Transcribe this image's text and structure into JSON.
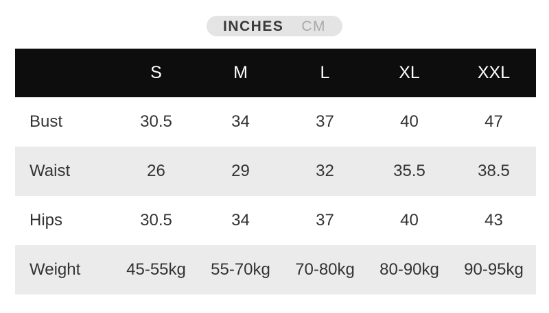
{
  "unit_toggle": {
    "inches_label": "INCHES",
    "cm_label": "CM",
    "selected": "INCHES"
  },
  "size_chart": {
    "columns": [
      "S",
      "M",
      "L",
      "XL",
      "XXL"
    ],
    "rows": [
      {
        "label": "Bust",
        "values": [
          "30.5",
          "34",
          "37",
          "40",
          "47"
        ]
      },
      {
        "label": "Waist",
        "values": [
          "26",
          "29",
          "32",
          "35.5",
          "38.5"
        ]
      },
      {
        "label": "Hips",
        "values": [
          "30.5",
          "34",
          "37",
          "40",
          "43"
        ]
      },
      {
        "label": "Weight",
        "values": [
          "45-55kg",
          "55-70kg",
          "70-80kg",
          "80-90kg",
          "90-95kg"
        ]
      }
    ]
  },
  "colors": {
    "header_bg": "#0d0d0d",
    "header_text": "#ffffff",
    "row_shaded_bg": "#ebebeb",
    "cell_text": "#333333",
    "toggle_bg": "#e4e4e4",
    "toggle_active_text": "#3a3a3a",
    "toggle_inactive_text": "#a9a9a9"
  }
}
